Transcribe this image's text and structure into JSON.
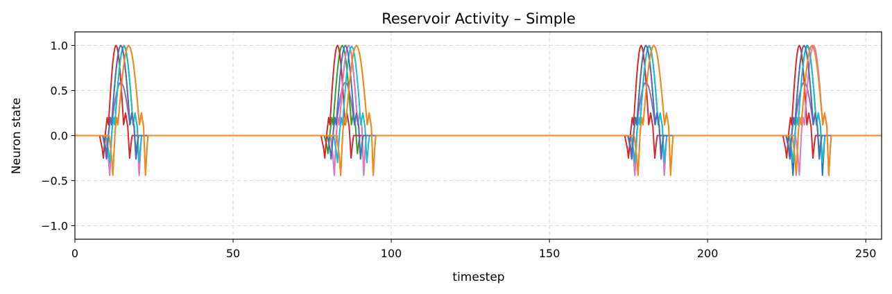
{
  "chart_data": {
    "type": "line",
    "title": "Reservoir Activity – Simple",
    "xlabel": "timestep",
    "ylabel": "Neuron state",
    "xlim": [
      0,
      255
    ],
    "ylim": [
      -1.15,
      1.15
    ],
    "x_ticks": [
      0,
      50,
      100,
      150,
      200,
      250
    ],
    "x_tick_labels": [
      "0",
      "50",
      "100",
      "150",
      "200",
      "250"
    ],
    "y_ticks": [
      1.0,
      0.5,
      0.0,
      -0.5,
      -1.0
    ],
    "y_tick_labels": [
      "1.0",
      "0.5",
      "0.0",
      "−0.5",
      "−1.0"
    ],
    "grid": true,
    "legend": "none",
    "bursts": [
      {
        "start": 8,
        "end": 26
      },
      {
        "start": 78,
        "end": 97
      },
      {
        "start": 173,
        "end": 189
      },
      {
        "start": 224,
        "end": 241
      }
    ],
    "series": [
      {
        "color": "#1f77b4",
        "onsets": [
          11,
          82,
          177,
          227
        ],
        "peak": 1.0,
        "dip": -0.44,
        "width": 9
      },
      {
        "color": "#ff7f0e",
        "onsets": [
          12,
          84,
          178,
          228
        ],
        "peak": 1.0,
        "dip": -0.44,
        "width": 10
      },
      {
        "color": "#2ca02c",
        "onsets": [
          10,
          80,
          176,
          226
        ],
        "peak": 1.0,
        "dip": -0.2,
        "width": 9
      },
      {
        "color": "#d62728",
        "onsets": [
          9,
          79,
          175,
          225
        ],
        "peak": 1.0,
        "dip": -0.25,
        "width": 8
      },
      {
        "color": "#9467bd",
        "onsets": [
          10,
          81,
          176,
          226
        ],
        "peak": 0.59,
        "dip": -0.26,
        "width": 9
      },
      {
        "color": "#e377c2",
        "onsets": [
          11,
          82,
          177,
          229
        ],
        "peak": 1.0,
        "dip": -0.44,
        "width": 9
      },
      {
        "color": "#17becf",
        "onsets": [
          11,
          83,
          177,
          227
        ],
        "peak": 0.99,
        "dip": -0.3,
        "width": 9
      },
      {
        "color": "#4b6fb4",
        "onsets": [
          10,
          81,
          176,
          226
        ],
        "peak": 1.0,
        "dip": -0.26,
        "width": 9
      },
      {
        "color": "#ef8a1e",
        "onsets": [
          12,
          84,
          178,
          228
        ],
        "peak": 1.0,
        "dip": -0.44,
        "width": 10
      }
    ]
  }
}
